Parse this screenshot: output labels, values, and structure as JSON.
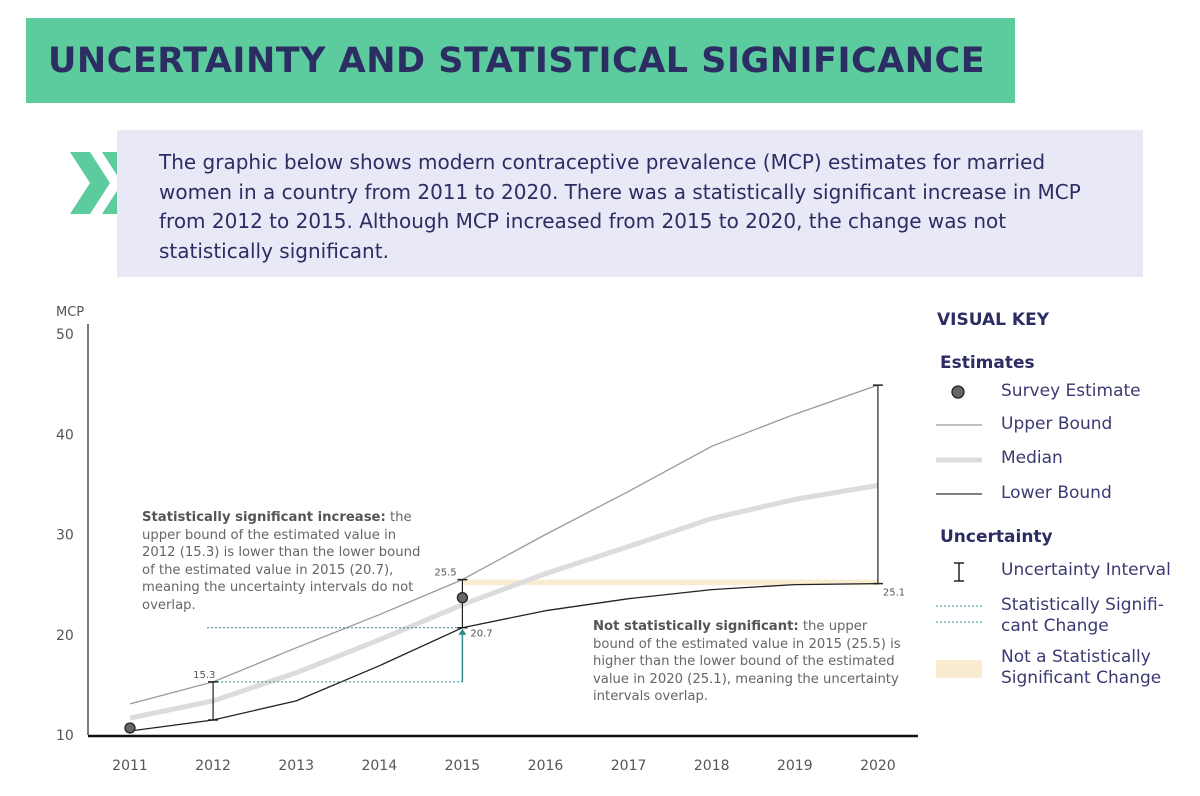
{
  "header": {
    "title": "UNCERTAINTY AND STATISTICAL SIGNIFICANCE"
  },
  "intro": {
    "text": "The graphic below shows modern contraceptive prevalence (MCP) estimates for married women in a country from 2011 to 2020. There was a statistically significant increase in MCP from 2012 to 2015. Although MCP increased from 2015 to 2020, the change was not statistically significant."
  },
  "annotations": {
    "significant": {
      "bold": "Statistically significant increase:",
      "text": " the upper bound of the estimated value in 2012 (15.3) is lower than the lower bound of the estimated value in 2015 (20.7), meaning the uncertainty intervals do not overlap."
    },
    "not_significant": {
      "bold": "Not statistically significant:",
      "text": " the upper bound of the estimated value in 2015 (25.5) is higher than the lower bound of the estimated value in 2020 (25.1), meaning the uncertainty intervals overlap."
    }
  },
  "visual_key": {
    "title": "VISUAL KEY",
    "estimates_heading": "Estimates",
    "survey_estimate": "Survey Estimate",
    "upper_bound": "Upper Bound",
    "median": "Median",
    "lower_bound": "Lower Bound",
    "uncertainty_heading": "Uncertainty",
    "uncertainty_interval": "Uncertainty Interval",
    "sig_change_line1": "Statistically Signifi-",
    "sig_change_line2": "cant Change",
    "not_sig_line1": "Not a Statistically",
    "not_sig_line2": "Significant Change"
  },
  "colors": {
    "title_bar": "#5ccc9e",
    "title_text": "#2b2d63",
    "intro_bg": "#e9e8f7",
    "upper_bound": "#9a9a9a",
    "median": "#dcdcdc",
    "lower_bound": "#222222",
    "survey_point": "#666666",
    "significant_change": "#2f8a8f",
    "not_significant_band": "#faecd1"
  },
  "chart_data": {
    "type": "line",
    "ylabel": "MCP",
    "ylim": [
      10,
      50
    ],
    "yticks": [
      10,
      20,
      30,
      40,
      50
    ],
    "x": [
      "2011",
      "2012",
      "2013",
      "2014",
      "2015",
      "2016",
      "2017",
      "2018",
      "2019",
      "2020"
    ],
    "series": [
      {
        "name": "Upper Bound",
        "values": [
          13.1,
          15.3,
          18.7,
          22.0,
          25.5,
          30.0,
          34.3,
          38.8,
          42.0,
          44.9
        ]
      },
      {
        "name": "Median",
        "values": [
          11.7,
          13.4,
          16.2,
          19.5,
          23.0,
          26.1,
          28.8,
          31.6,
          33.5,
          34.9
        ]
      },
      {
        "name": "Lower Bound",
        "values": [
          10.4,
          11.5,
          13.4,
          16.9,
          20.7,
          22.4,
          23.6,
          24.5,
          25.0,
          25.1
        ]
      }
    ],
    "survey_estimates": [
      {
        "x": "2011",
        "y": 10.7
      },
      {
        "x": "2015",
        "y": 23.7
      }
    ],
    "uncertainty_intervals": [
      {
        "x": "2012",
        "low": 11.5,
        "high": 15.3
      },
      {
        "x": "2015",
        "low": 20.7,
        "high": 25.5
      },
      {
        "x": "2020",
        "low": 25.1,
        "high": 44.9
      }
    ],
    "value_labels": [
      {
        "x": "2012",
        "y": 15.3,
        "text": "15.3"
      },
      {
        "x": "2015",
        "y": 25.5,
        "text": "25.5"
      },
      {
        "x": "2015",
        "y": 20.7,
        "text": "20.7"
      },
      {
        "x": "2020",
        "y": 25.1,
        "text": "25.1"
      }
    ],
    "significant_change": {
      "from": "2012",
      "to": "2015",
      "from_value": 15.3,
      "to_value": 20.7
    },
    "not_significant_change": {
      "from": "2015",
      "to": "2020",
      "from_value": 25.5,
      "to_value": 25.1
    },
    "grid": false
  }
}
